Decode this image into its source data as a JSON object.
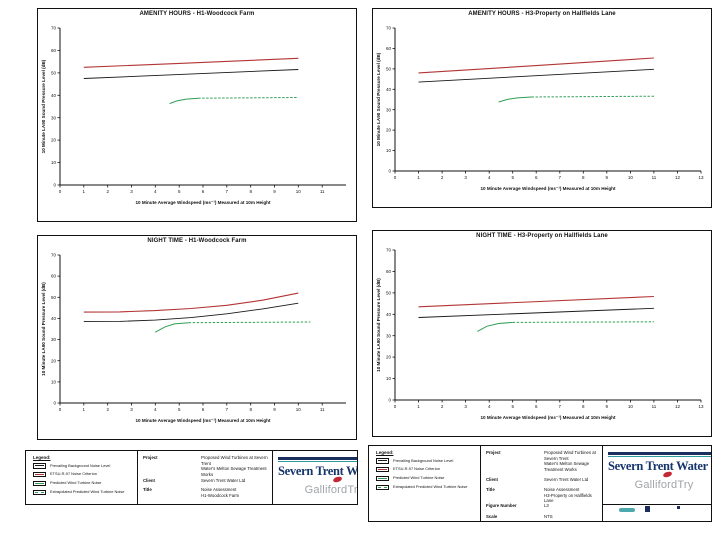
{
  "logos": {
    "severn_trent": "Severn Trent Water",
    "galliford": "GallifordTry"
  },
  "legend": {
    "title": "Legend:",
    "items": [
      {
        "label": "Prevailing Background Noise Level",
        "color": "#1a1a1a",
        "dash": false
      },
      {
        "label": "ETSU-R-97 Noise Criterion",
        "color": "#b23434",
        "dash": false
      },
      {
        "label": "Predicted Wind Turbine Noise",
        "color": "#2f9e54",
        "dash": false
      },
      {
        "label": "Extrapolated Predicted Wind Turbine Noise",
        "color": "#2f9e54",
        "dash": true
      }
    ]
  },
  "pages": [
    {
      "name": "left",
      "fields": [
        {
          "label": "Project",
          "value": "Proposed Wind Turbines at Severn Trent\nWater's Melton Sewage Treatment Works"
        },
        {
          "label": "Client",
          "value": "Severn Trent Water Ltd"
        },
        {
          "label": "Title",
          "value": "Noise Assessment\nH1-Woodcock Farm"
        }
      ]
    },
    {
      "name": "right",
      "fields": [
        {
          "label": "Project",
          "value": "Proposed Wind Turbines at Severn Trent\nWater's Melton Sewage Treatment Works"
        },
        {
          "label": "Client",
          "value": "Severn Trent Water Ltd"
        },
        {
          "label": "Title",
          "value": "Noise Assessment\nH3-Property on Hallfields Lane"
        },
        {
          "label": "Figure Number",
          "value": "L3"
        },
        {
          "label": "Scale",
          "value": "NTS"
        }
      ]
    }
  ],
  "chart_data": [
    {
      "type": "line",
      "title": "AMENITY HOURS - H1-Woodcock Farm",
      "xlabel": "10 Minute Average Windspeed (ms⁻¹) Measured at 10m Height",
      "ylabel": "10 Minute LA90 Sound Pressure Level (dB)",
      "xlim": [
        0,
        12
      ],
      "ylim": [
        0,
        70
      ],
      "xticks": [
        0,
        1,
        2,
        3,
        4,
        5,
        6,
        7,
        8,
        9,
        10,
        11
      ],
      "yticks": [
        0,
        10,
        20,
        30,
        40,
        50,
        60,
        70
      ],
      "grid": false,
      "legend_position": "title-block",
      "series": [
        {
          "name": "ETSU-R-97 Noise Criterion",
          "color": "#b23434",
          "width": 1.1,
          "dash": null,
          "points": [
            [
              1,
              52.5
            ],
            [
              5,
              54.2
            ],
            [
              10,
              56.5
            ]
          ]
        },
        {
          "name": "Prevailing Background Noise Level",
          "color": "#1a1a1a",
          "width": 0.9,
          "dash": null,
          "points": [
            [
              1,
              47.5
            ],
            [
              10,
              51.5
            ]
          ]
        },
        {
          "name": "Predicted Wind Turbine Noise",
          "color": "#2f9e54",
          "width": 1,
          "dash": null,
          "points": [
            [
              4.6,
              36.3
            ],
            [
              4.9,
              37.5
            ],
            [
              5.3,
              38.3
            ],
            [
              5.8,
              38.7
            ]
          ]
        },
        {
          "name": "Extrapolated Predicted Wind Turbine Noise",
          "color": "#2f9e54",
          "width": 1,
          "dash": "2.4 1.6",
          "points": [
            [
              5.8,
              38.7
            ],
            [
              10,
              39
            ]
          ]
        }
      ]
    },
    {
      "type": "line",
      "title": "NIGHT TIME - H1-Woodcock Farm",
      "xlabel": "10 Minute Average Windspeed (ms⁻¹) Measured at 10m Height",
      "ylabel": "10 Minute LA90 Sound Pressure Level (dB)",
      "xlim": [
        0,
        12
      ],
      "ylim": [
        0,
        70
      ],
      "xticks": [
        0,
        1,
        2,
        3,
        4,
        5,
        6,
        7,
        8,
        9,
        10,
        11
      ],
      "yticks": [
        0,
        10,
        20,
        30,
        40,
        50,
        60,
        70
      ],
      "grid": false,
      "legend_position": "title-block",
      "series": [
        {
          "name": "ETSU-R-97 Noise Criterion",
          "color": "#b23434",
          "width": 1.1,
          "dash": null,
          "points": [
            [
              1,
              43
            ],
            [
              2.5,
              43.1
            ],
            [
              4,
              43.7
            ],
            [
              5.5,
              44.7
            ],
            [
              7,
              46.2
            ],
            [
              8.5,
              48.6
            ],
            [
              10,
              52
            ]
          ]
        },
        {
          "name": "Prevailing Background Noise Level",
          "color": "#1a1a1a",
          "width": 0.9,
          "dash": null,
          "points": [
            [
              1,
              38.5
            ],
            [
              2.5,
              38.6
            ],
            [
              4,
              39.2
            ],
            [
              5.5,
              40.4
            ],
            [
              7,
              42.2
            ],
            [
              8.5,
              44.5
            ],
            [
              10,
              47.2
            ]
          ]
        },
        {
          "name": "Predicted Wind Turbine Noise",
          "color": "#2f9e54",
          "width": 1,
          "dash": null,
          "points": [
            [
              4,
              33.5
            ],
            [
              4.4,
              36
            ],
            [
              4.8,
              37.4
            ],
            [
              5.4,
              38
            ]
          ]
        },
        {
          "name": "Extrapolated Predicted Wind Turbine Noise",
          "color": "#2f9e54",
          "width": 1,
          "dash": "2.4 1.6",
          "points": [
            [
              5.4,
              38
            ],
            [
              10.5,
              38.3
            ]
          ]
        }
      ]
    },
    {
      "type": "line",
      "title": "AMENITY HOURS - H3-Property on Hallfields Lane",
      "xlabel": "10 Minute Average Windspeed (ms⁻¹) Measured at 10m Height",
      "ylabel": "10 Minute LA90 Sound Pressure Level (dB)",
      "xlim": [
        0,
        13
      ],
      "ylim": [
        0,
        70
      ],
      "xticks": [
        0,
        1,
        2,
        3,
        4,
        5,
        6,
        7,
        8,
        9,
        10,
        11,
        12,
        13
      ],
      "yticks": [
        0,
        10,
        20,
        30,
        40,
        50,
        60,
        70
      ],
      "grid": false,
      "legend_position": "title-block",
      "series": [
        {
          "name": "ETSU-R-97 Noise Criterion",
          "color": "#b23434",
          "width": 1.1,
          "dash": null,
          "points": [
            [
              1,
              48
            ],
            [
              6,
              51.6
            ],
            [
              11,
              55.3
            ]
          ]
        },
        {
          "name": "Prevailing Background Noise Level",
          "color": "#1a1a1a",
          "width": 0.9,
          "dash": null,
          "points": [
            [
              1,
              43.5
            ],
            [
              11,
              49.8
            ]
          ]
        },
        {
          "name": "Predicted Wind Turbine Noise",
          "color": "#2f9e54",
          "width": 1,
          "dash": null,
          "points": [
            [
              4.4,
              33.8
            ],
            [
              4.8,
              35.1
            ],
            [
              5.2,
              35.8
            ],
            [
              5.8,
              36.2
            ]
          ]
        },
        {
          "name": "Extrapolated Predicted Wind Turbine Noise",
          "color": "#2f9e54",
          "width": 1,
          "dash": "2.4 1.6",
          "points": [
            [
              5.8,
              36.2
            ],
            [
              11,
              36.6
            ]
          ]
        }
      ]
    },
    {
      "type": "line",
      "title": "NIGHT TIME - H3-Property on Hallfields Lane",
      "xlabel": "10 Minute Average Windspeed (ms⁻¹) Measured at 10m Height",
      "ylabel": "10 Minute LA90 Sound Pressure Level (dB)",
      "xlim": [
        0,
        13
      ],
      "ylim": [
        0,
        70
      ],
      "xticks": [
        0,
        1,
        2,
        3,
        4,
        5,
        6,
        7,
        8,
        9,
        10,
        11,
        12,
        13
      ],
      "yticks": [
        0,
        10,
        20,
        30,
        40,
        50,
        60,
        70
      ],
      "grid": false,
      "legend_position": "title-block",
      "series": [
        {
          "name": "ETSU-R-97 Noise Criterion",
          "color": "#b23434",
          "width": 1.1,
          "dash": null,
          "points": [
            [
              1,
              43.5
            ],
            [
              11,
              48.3
            ]
          ]
        },
        {
          "name": "Prevailing Background Noise Level",
          "color": "#1a1a1a",
          "width": 0.9,
          "dash": null,
          "points": [
            [
              1,
              38.5
            ],
            [
              11,
              42.8
            ]
          ]
        },
        {
          "name": "Predicted Wind Turbine Noise",
          "color": "#2f9e54",
          "width": 1,
          "dash": null,
          "points": [
            [
              3.5,
              32
            ],
            [
              3.9,
              34.4
            ],
            [
              4.4,
              35.7
            ],
            [
              5,
              36.2
            ]
          ]
        },
        {
          "name": "Extrapolated Predicted Wind Turbine Noise",
          "color": "#2f9e54",
          "width": 1,
          "dash": "2.4 1.6",
          "points": [
            [
              5,
              36.2
            ],
            [
              11,
              36.5
            ]
          ]
        }
      ]
    }
  ]
}
